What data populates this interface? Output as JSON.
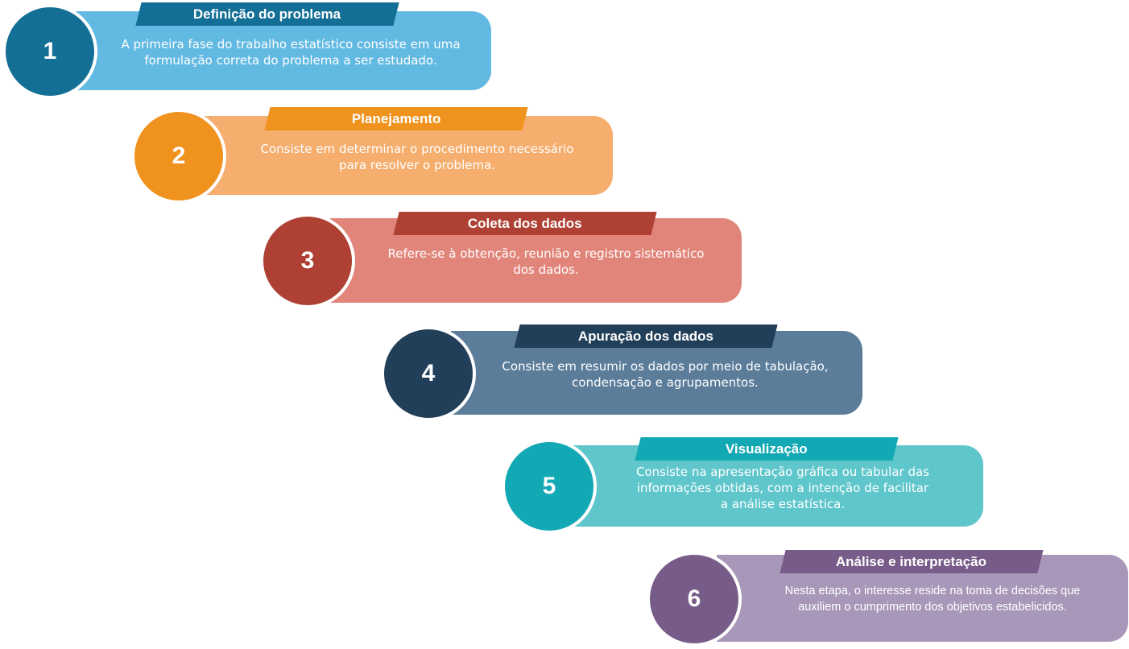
{
  "steps": [
    {
      "number": "1",
      "title": "Definição do problema",
      "text": "A primeira fase do trabalho estatístico consiste em uma\nformulação correta do problema a ser estudado.",
      "dark": "#146f97",
      "light": "#62b9e2"
    },
    {
      "number": "2",
      "title": "Planejamento",
      "text": "Consiste em determinar o procedimento necessário\npara resolver o problema.",
      "dark": "#f0921e",
      "light": "#f5ae6e"
    },
    {
      "number": "3",
      "title": "Coleta dos dados",
      "text": "Refere-se à obtenção, reunião e registro sistemático\ndos dados.",
      "dark": "#ae4034",
      "light": "#e1857a"
    },
    {
      "number": "4",
      "title": "Apuração dos dados",
      "text": "Consiste em resumir os dados por meio de tabulação,\ncondensação e agrupamentos.",
      "dark": "#223f5a",
      "light": "#5c7d9a"
    },
    {
      "number": "5",
      "title": "Visualização",
      "text": "Consiste na apresentação gráfica ou tabular das\ninformações obtidas, com a intenção de facilitar\na análise estatística.",
      "dark": "#13a9b4",
      "light": "#5fc6cb"
    },
    {
      "number": "6",
      "title": "Análise e interpretação",
      "text": "Nesta etapa, o interesse reside na toma de decisões que\nauxiliem o cumprimento dos objetivos estabelicidos.",
      "dark": "#775b88",
      "light": "#a897b8"
    }
  ]
}
